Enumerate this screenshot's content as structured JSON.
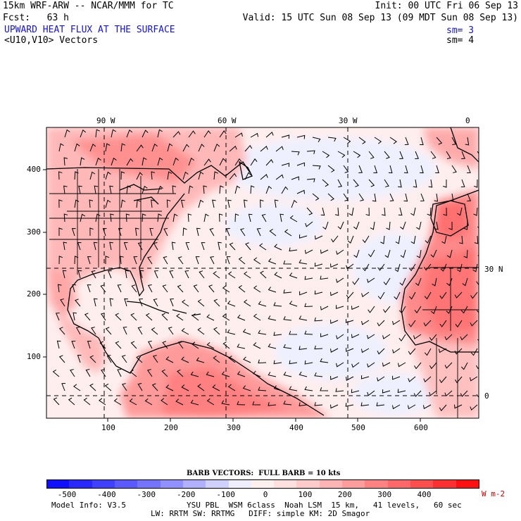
{
  "header": {
    "line1_left": "15km WRF-ARW -- NCAR/MMM for TC",
    "line1_right": "Init: 00 UTC Fri 06 Sep 13",
    "line2_left": "Fcst:   63 h",
    "line2_right": "Valid: 15 UTC Sun 08 Sep 13 (09 MDT Sun 08 Sep 13)",
    "field_title": "UPWARD HEAT FLUX AT THE SURFACE",
    "sm1": "sm= 3",
    "vector_title": "<U10,V10> Vectors",
    "sm2": "sm= 4"
  },
  "map": {
    "lon_labels": [
      "90 W",
      "60 W",
      "30 W",
      "0"
    ],
    "lat_labels": [
      "30 N",
      "0"
    ],
    "x_ticks": [
      "100",
      "200",
      "300",
      "400",
      "500",
      "600"
    ],
    "y_ticks": [
      "100",
      "200",
      "300",
      "400"
    ]
  },
  "colorbar": {
    "barb_title": "BARB VECTORS:  FULL BARB = 10 kts",
    "colors": [
      "#1010ff",
      "#2828ff",
      "#4040ff",
      "#5a5aff",
      "#7474ff",
      "#9090ff",
      "#b0b0ff",
      "#d0d0ff",
      "#eeeeff",
      "#fff0f0",
      "#ffe0e0",
      "#ffcaca",
      "#ffb4b4",
      "#ff9c9c",
      "#ff8282",
      "#ff6868",
      "#ff4e4e",
      "#ff3030",
      "#ff1010"
    ],
    "labels": [
      "-500",
      "-400",
      "-300",
      "-200",
      "-100",
      "0",
      "100",
      "200",
      "300",
      "400"
    ],
    "units": "W m-2"
  },
  "footer": {
    "model_info": "Model Info: V3.5",
    "line1": "YSU PBL  WSM 6class  Noah LSM  15 km,   41 levels,   60 sec",
    "line2": "LW: RRTM SW: RRTMG   DIFF: simple KM: 2D Smagor"
  }
}
